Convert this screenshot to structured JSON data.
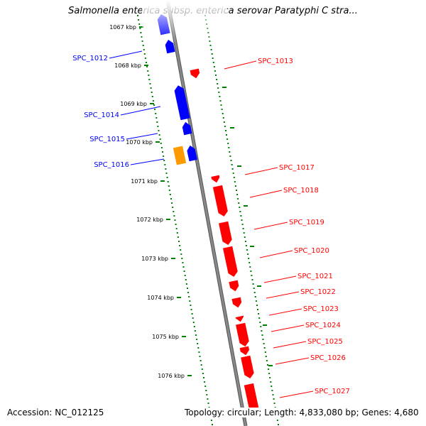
{
  "title": "Salmonella enterica subsp. enterica serovar Paratyphi C stra...",
  "footer": {
    "accession": "Accession: NC_012125",
    "info": "Topology: circular; Length: 4,833,080 bp; Genes: 4,680"
  },
  "colors": {
    "forward_strand": "#0000ff",
    "reverse_strand": "#ff0000",
    "highlight_gene": "#ff9900",
    "tick_green": "#008000",
    "backbone": "#888888"
  },
  "chart_data": {
    "type": "genome-map",
    "kbp_ticks": [
      "1067 kbp",
      "1068 kbp",
      "1069 kbp",
      "1070 kbp",
      "1071 kbp",
      "1072 kbp",
      "1073 kbp",
      "1074 kbp",
      "1075 kbp",
      "1076 kbp"
    ],
    "forward_labels": [
      "SPC_1012",
      "SPC_1014",
      "SPC_1015",
      "SPC_1016"
    ],
    "reverse_labels": [
      "SPC_1013",
      "SPC_1017",
      "SPC_1018",
      "SPC_1019",
      "SPC_1020",
      "SPC_1021",
      "SPC_1022",
      "SPC_1023",
      "SPC_1024",
      "SPC_1025",
      "SPC_1026",
      "SPC_1027"
    ]
  }
}
